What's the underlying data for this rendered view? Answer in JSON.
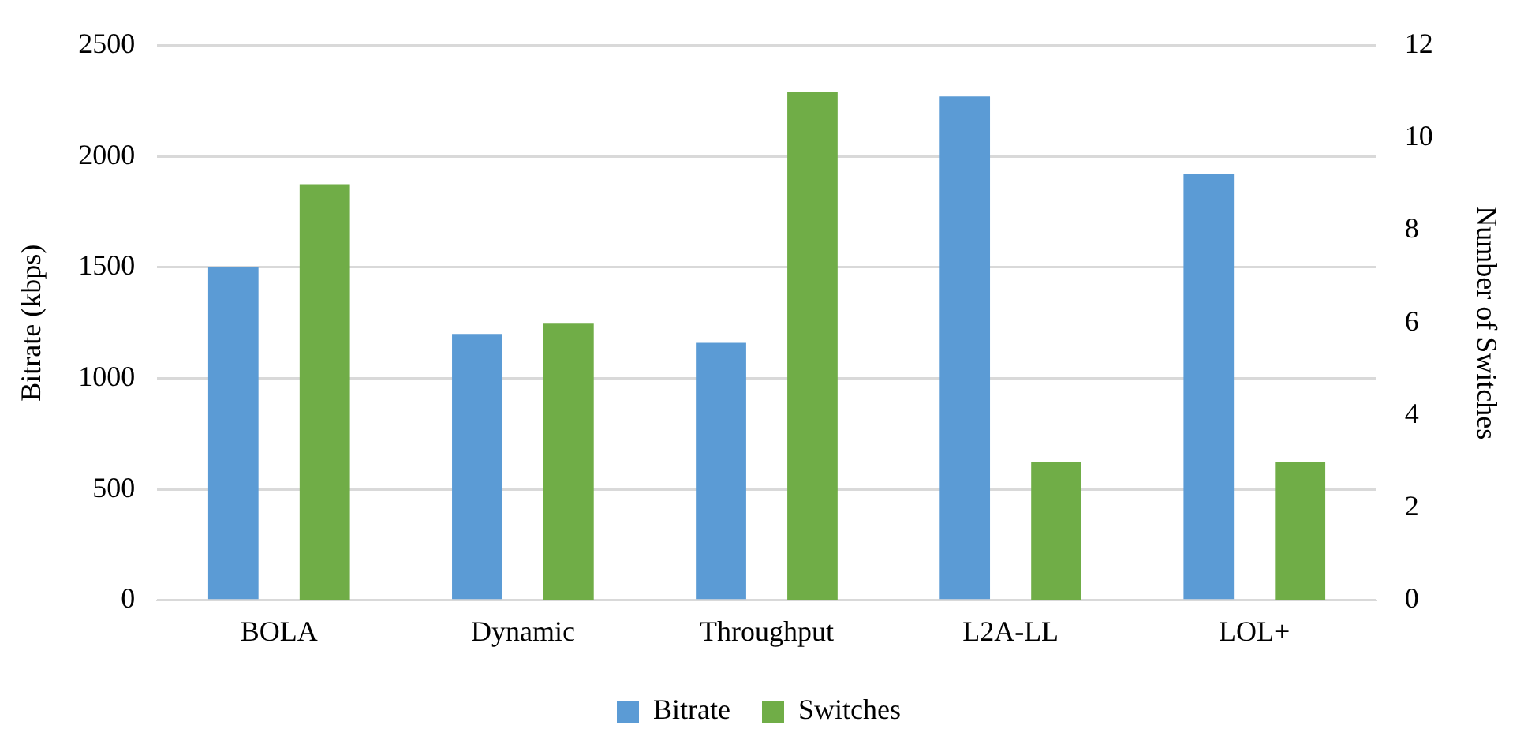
{
  "chart_data": {
    "type": "bar",
    "xlabel": null,
    "ylabel": "Bitrate (kbps)",
    "y2label": "Number of Switches",
    "categories": [
      "BOLA",
      "Dynamic",
      "Throughput",
      "L2A-LL",
      "LOL+"
    ],
    "series": [
      {
        "name": "Bitrate",
        "color": "#5b9bd5",
        "values": [
          1500,
          1200,
          1160,
          2270,
          1920
        ]
      },
      {
        "name": "Switches",
        "color": "#70ad47",
        "axis": "y2",
        "values": [
          9,
          6,
          11,
          3,
          3
        ]
      }
    ],
    "ylim": [
      0,
      2500
    ],
    "yticks": [
      0,
      500,
      1000,
      1500,
      2000,
      2500
    ],
    "y2lim": [
      0,
      12
    ],
    "y2ticks": [
      0,
      2,
      4,
      6,
      8,
      10,
      12
    ],
    "grid": "y",
    "legend": "bottom"
  }
}
